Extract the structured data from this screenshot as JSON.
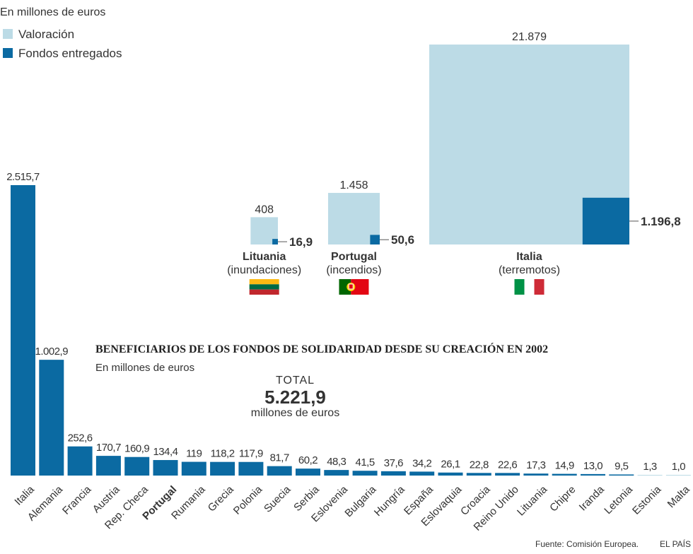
{
  "colors": {
    "valoracion": "#bcdbe6",
    "fondos": "#0b6aa2",
    "text": "#333333"
  },
  "chart_data": [
    {
      "type": "area-squares",
      "unit_label": "En millones de euros",
      "legend": [
        {
          "name": "Valoración",
          "color": "#bcdbe6"
        },
        {
          "name": "Fondos entregados",
          "color": "#0b6aa2"
        }
      ],
      "legend_placement": "top-left",
      "items": [
        {
          "country": "Lituania",
          "event": "(inundaciones)",
          "valoracion": 408,
          "valoracion_label": "408",
          "fondos": 16.9,
          "fondos_label": "16,9",
          "flag": "lithuania-flag"
        },
        {
          "country": "Portugal",
          "event": "(incendios)",
          "valoracion": 1458,
          "valoracion_label": "1.458",
          "fondos": 50.6,
          "fondos_label": "50,6",
          "flag": "portugal-flag"
        },
        {
          "country": "Italia",
          "event": "(terremotos)",
          "valoracion": 21879,
          "valoracion_label": "21.879",
          "fondos": 1196.8,
          "fondos_label": "1.196,8",
          "flag": "italy-flag"
        }
      ]
    },
    {
      "type": "bar",
      "title": "BENEFICIARIOS DE LOS FONDOS DE SOLIDARIDAD DESDE SU CREACIÓN EN 2002",
      "subtitle": "En millones de euros",
      "total": {
        "label": "TOTAL",
        "value": "5.221,9",
        "unit": "millones de euros"
      },
      "grid": false,
      "highlight": "Portugal",
      "categories": [
        "Italia",
        "Alemania",
        "Francia",
        "Austria",
        "Rep. Checa",
        "Portugal",
        "Rumania",
        "Grecia",
        "Polonia",
        "Suecia",
        "Serbia",
        "Eslovenia",
        "Bulgaria",
        "Hungría",
        "España",
        "Eslovaquia",
        "Croacia",
        "Reino Unido",
        "Lituania",
        "Chipre",
        "Iranda",
        "Letonia",
        "Estonia",
        "Malta"
      ],
      "values": [
        2515.7,
        1002.9,
        252.6,
        170.7,
        160.9,
        134.4,
        119,
        118.2,
        117.9,
        81.7,
        60.2,
        48.3,
        41.5,
        37.6,
        34.2,
        26.1,
        22.8,
        22.6,
        17.3,
        14.9,
        13.0,
        9.5,
        1.3,
        1.0
      ],
      "value_labels": [
        "2.515,7",
        "1.002,9",
        "252,6",
        "170,7",
        "160,9",
        "134,4",
        "119",
        "118,2",
        "117,9",
        "81,7",
        "60,2",
        "48,3",
        "41,5",
        "37,6",
        "34,2",
        "26,1",
        "22,8",
        "22,6",
        "17,3",
        "14,9",
        "13,0",
        "9,5",
        "1,3",
        "1,0"
      ]
    }
  ],
  "footer": {
    "source": "Fuente: Comisión Europea.",
    "brand": "EL PAÍS"
  }
}
